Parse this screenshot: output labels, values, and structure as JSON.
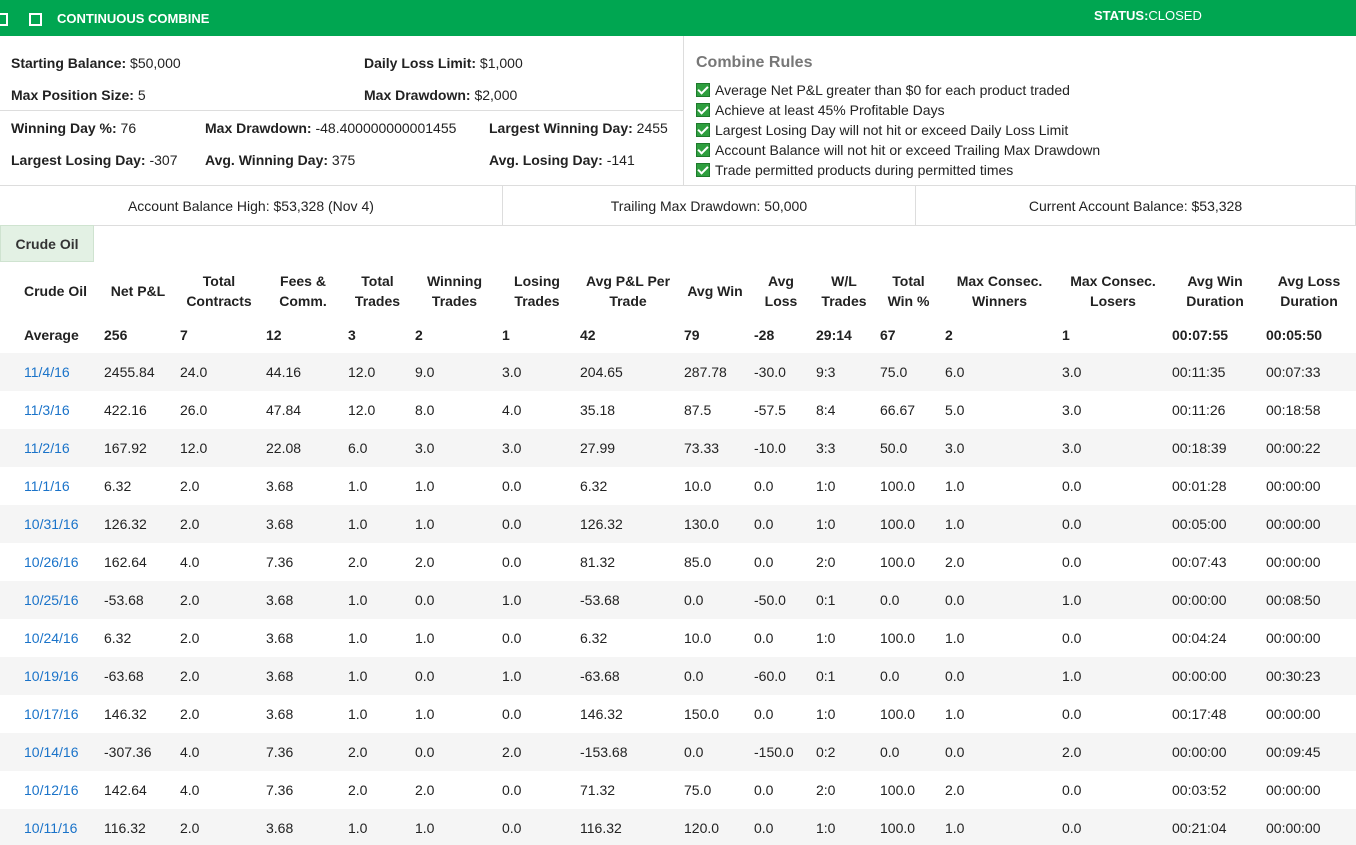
{
  "header": {
    "title": "CONTINUOUS COMBINE",
    "status_label": "STATUS:",
    "status_value": "CLOSED"
  },
  "stats": [
    {
      "label": "Starting Balance:",
      "value": "$50,000"
    },
    {
      "label": "Daily Loss Limit:",
      "value": "$1,000"
    },
    {
      "label": "Max Position Size:",
      "value": "5"
    },
    {
      "label": "Max Drawdown:",
      "value": "$2,000"
    },
    {
      "label": "Winning Day %:",
      "value": "76"
    },
    {
      "label": "Max Drawdown:",
      "value": "-48.400000000001455"
    },
    {
      "label": "Largest Winning Day:",
      "value": "2455"
    },
    {
      "label": "Largest Losing Day:",
      "value": "-307"
    },
    {
      "label": "Avg. Winning Day:",
      "value": "375"
    },
    {
      "label": "Avg. Losing Day:",
      "value": "-141"
    }
  ],
  "rules": {
    "title": "Combine Rules",
    "items": [
      "Average Net P&L greater than $0 for each product traded",
      "Achieve at least 45% Profitable Days",
      "Largest Losing Day will not hit or exceed Daily Loss Limit",
      "Account Balance will not hit or exceed Trailing Max Drawdown",
      "Trade permitted products during permitted times"
    ]
  },
  "summary": [
    "Account Balance High: $53,328 (Nov 4)",
    "Trailing Max Drawdown: 50,000",
    "Current Account Balance: $53,328"
  ],
  "tab": "Crude Oil",
  "table": {
    "columns": [
      "Crude Oil",
      "Net P&L",
      "Total Contracts",
      "Fees & Comm.",
      "Total Trades",
      "Winning Trades",
      "Losing Trades",
      "Avg P&L Per Trade",
      "Avg Win",
      "Avg Loss",
      "W/L Trades",
      "Total Win %",
      "Max Consec. Winners",
      "Max Consec. Losers",
      "Avg Win Duration",
      "Avg Loss Duration"
    ],
    "average": [
      "Average",
      "256",
      "7",
      "12",
      "3",
      "2",
      "1",
      "42",
      "79",
      "-28",
      "29:14",
      "67",
      "2",
      "1",
      "00:07:55",
      "00:05:50"
    ],
    "rows": [
      [
        "11/4/16",
        "2455.84",
        "24.0",
        "44.16",
        "12.0",
        "9.0",
        "3.0",
        "204.65",
        "287.78",
        "-30.0",
        "9:3",
        "75.0",
        "6.0",
        "3.0",
        "00:11:35",
        "00:07:33"
      ],
      [
        "11/3/16",
        "422.16",
        "26.0",
        "47.84",
        "12.0",
        "8.0",
        "4.0",
        "35.18",
        "87.5",
        "-57.5",
        "8:4",
        "66.67",
        "5.0",
        "3.0",
        "00:11:26",
        "00:18:58"
      ],
      [
        "11/2/16",
        "167.92",
        "12.0",
        "22.08",
        "6.0",
        "3.0",
        "3.0",
        "27.99",
        "73.33",
        "-10.0",
        "3:3",
        "50.0",
        "3.0",
        "3.0",
        "00:18:39",
        "00:00:22"
      ],
      [
        "11/1/16",
        "6.32",
        "2.0",
        "3.68",
        "1.0",
        "1.0",
        "0.0",
        "6.32",
        "10.0",
        "0.0",
        "1:0",
        "100.0",
        "1.0",
        "0.0",
        "00:01:28",
        "00:00:00"
      ],
      [
        "10/31/16",
        "126.32",
        "2.0",
        "3.68",
        "1.0",
        "1.0",
        "0.0",
        "126.32",
        "130.0",
        "0.0",
        "1:0",
        "100.0",
        "1.0",
        "0.0",
        "00:05:00",
        "00:00:00"
      ],
      [
        "10/26/16",
        "162.64",
        "4.0",
        "7.36",
        "2.0",
        "2.0",
        "0.0",
        "81.32",
        "85.0",
        "0.0",
        "2:0",
        "100.0",
        "2.0",
        "0.0",
        "00:07:43",
        "00:00:00"
      ],
      [
        "10/25/16",
        "-53.68",
        "2.0",
        "3.68",
        "1.0",
        "0.0",
        "1.0",
        "-53.68",
        "0.0",
        "-50.0",
        "0:1",
        "0.0",
        "0.0",
        "1.0",
        "00:00:00",
        "00:08:50"
      ],
      [
        "10/24/16",
        "6.32",
        "2.0",
        "3.68",
        "1.0",
        "1.0",
        "0.0",
        "6.32",
        "10.0",
        "0.0",
        "1:0",
        "100.0",
        "1.0",
        "0.0",
        "00:04:24",
        "00:00:00"
      ],
      [
        "10/19/16",
        "-63.68",
        "2.0",
        "3.68",
        "1.0",
        "0.0",
        "1.0",
        "-63.68",
        "0.0",
        "-60.0",
        "0:1",
        "0.0",
        "0.0",
        "1.0",
        "00:00:00",
        "00:30:23"
      ],
      [
        "10/17/16",
        "146.32",
        "2.0",
        "3.68",
        "1.0",
        "1.0",
        "0.0",
        "146.32",
        "150.0",
        "0.0",
        "1:0",
        "100.0",
        "1.0",
        "0.0",
        "00:17:48",
        "00:00:00"
      ],
      [
        "10/14/16",
        "-307.36",
        "4.0",
        "7.36",
        "2.0",
        "0.0",
        "2.0",
        "-153.68",
        "0.0",
        "-150.0",
        "0:2",
        "0.0",
        "0.0",
        "2.0",
        "00:00:00",
        "00:09:45"
      ],
      [
        "10/12/16",
        "142.64",
        "4.0",
        "7.36",
        "2.0",
        "2.0",
        "0.0",
        "71.32",
        "75.0",
        "0.0",
        "2:0",
        "100.0",
        "2.0",
        "0.0",
        "00:03:52",
        "00:00:00"
      ],
      [
        "10/11/16",
        "116.32",
        "2.0",
        "3.68",
        "1.0",
        "1.0",
        "0.0",
        "116.32",
        "120.0",
        "0.0",
        "1:0",
        "100.0",
        "1.0",
        "0.0",
        "00:21:04",
        "00:00:00"
      ]
    ]
  }
}
